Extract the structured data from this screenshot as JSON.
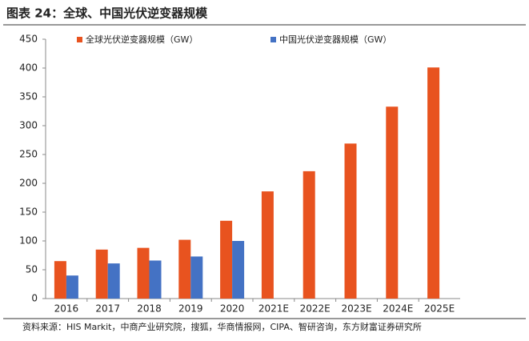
{
  "chart_data": {
    "type": "bar",
    "title": "图表 24：全球、中国光伏逆变器规模",
    "source": "资料来源：HIS Markit，中商产业研究院，搜狐，华商情报网，CIPA、智研咨询，东方财富证券研究所",
    "categories": [
      "2016",
      "2017",
      "2018",
      "2019",
      "2020",
      "2021E",
      "2022E",
      "2023E",
      "2024E",
      "2025E"
    ],
    "series": [
      {
        "name": "全球光伏逆变器规模（GW）",
        "color": "#e8531f",
        "values": [
          65,
          85,
          88,
          102,
          135,
          186,
          221,
          269,
          333,
          401
        ]
      },
      {
        "name": "中国光伏逆变器规模（GW）",
        "color": "#4472c4",
        "values": [
          40,
          61,
          66,
          73,
          100,
          null,
          null,
          null,
          null,
          null
        ]
      }
    ],
    "ylim": [
      0,
      450
    ],
    "yticks": [
      0,
      50,
      100,
      150,
      200,
      250,
      300,
      350,
      400,
      450
    ],
    "grid": false
  }
}
